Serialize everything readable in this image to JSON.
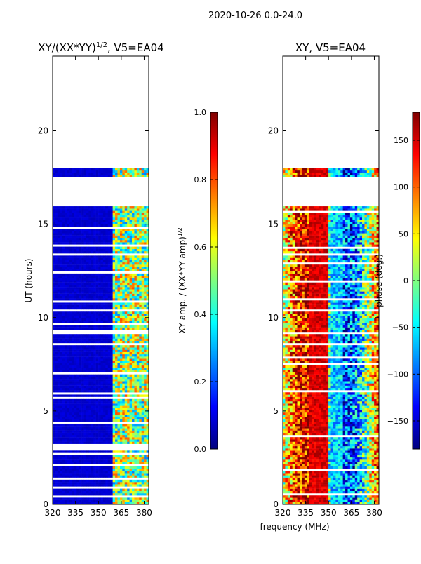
{
  "figure": {
    "suptitle": "2020-10-26 0.0-24.0",
    "shared_xlabel": "frequency (MHz)"
  },
  "colors": {
    "jet": [
      "#00007f",
      "#0000ff",
      "#007fff",
      "#00ffff",
      "#7fff7f",
      "#ffff00",
      "#ff7f00",
      "#ff0000",
      "#7f0000"
    ],
    "background_blue": "#00008b",
    "gap": "#ffffff"
  },
  "chart_data": [
    {
      "type": "heatmap",
      "name": "amplitude",
      "title_main": "XY/(XX*YY)",
      "title_sup": "1/2",
      "title_suffix": ", V5=EA04",
      "xlabel": "",
      "ylabel": "UT (hours)",
      "xlim": [
        320,
        383
      ],
      "ylim": [
        0,
        24
      ],
      "xticks": [
        320,
        335,
        350,
        365,
        380
      ],
      "yticks": [
        0,
        5,
        10,
        15,
        20
      ],
      "data_ranges_hours": [
        [
          0,
          16
        ],
        [
          17.55,
          18
        ]
      ],
      "band_split_mhz": 360,
      "colorbar": {
        "label_main": "XY amp. / (XX*YY amp)",
        "label_sup": "1/2",
        "min": 0.0,
        "max": 1.0,
        "ticks": [
          "0.0",
          "0.2",
          "0.4",
          "0.6",
          "0.8",
          "1.0"
        ]
      }
    },
    {
      "type": "heatmap",
      "name": "phase",
      "title_main": "XY, V5=EA04",
      "title_sup": "",
      "title_suffix": "",
      "xlabel": "frequency (MHz)",
      "ylabel": "",
      "xlim": [
        320,
        383
      ],
      "ylim": [
        0,
        24
      ],
      "xticks": [
        320,
        335,
        350,
        365,
        380
      ],
      "yticks": [
        0,
        5,
        10,
        15,
        20
      ],
      "data_ranges_hours": [
        [
          0,
          16
        ],
        [
          17.55,
          18
        ]
      ],
      "colorbar": {
        "label_main": "phase (deg.)",
        "label_sup": "",
        "min": -180,
        "max": 180,
        "ticks": [
          "−150",
          "−100",
          "−50",
          "0",
          "50",
          "100",
          "150"
        ]
      }
    }
  ]
}
